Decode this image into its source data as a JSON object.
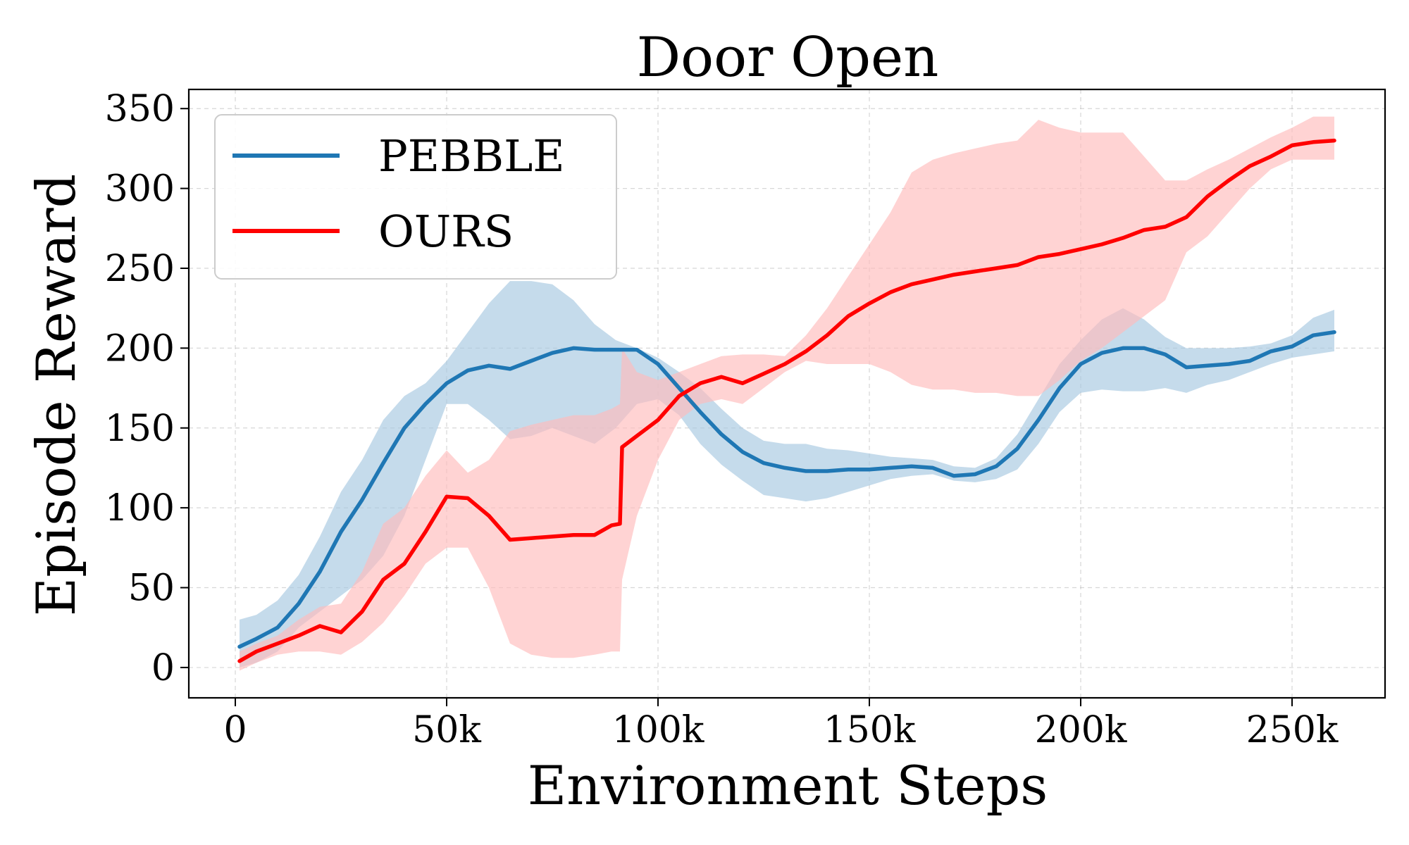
{
  "chart_data": {
    "type": "line",
    "title": "Door Open",
    "xlabel": "Environment Steps",
    "ylabel": "Episode Reward",
    "xlim": [
      -11000,
      272000
    ],
    "ylim": [
      -19,
      362
    ],
    "xticks": [
      0,
      50000,
      100000,
      150000,
      200000,
      250000
    ],
    "xtick_labels": [
      "0",
      "50k",
      "100k",
      "150k",
      "200k",
      "250k"
    ],
    "yticks": [
      0,
      50,
      100,
      150,
      200,
      250,
      300,
      350
    ],
    "ytick_labels": [
      "0",
      "50",
      "100",
      "150",
      "200",
      "250",
      "300",
      "350"
    ],
    "grid": true,
    "legend_position": "top-left",
    "series": [
      {
        "name": "PEBBLE",
        "color": "#1f77b4",
        "band_color": "#a6c8e0",
        "x": [
          1000,
          5000,
          10000,
          15000,
          20000,
          25000,
          30000,
          35000,
          40000,
          45000,
          50000,
          55000,
          60000,
          65000,
          70000,
          75000,
          80000,
          85000,
          90000,
          95000,
          100000,
          105000,
          110000,
          115000,
          120000,
          125000,
          130000,
          135000,
          140000,
          145000,
          150000,
          155000,
          160000,
          165000,
          170000,
          175000,
          180000,
          185000,
          190000,
          195000,
          200000,
          205000,
          210000,
          215000,
          220000,
          225000,
          230000,
          235000,
          240000,
          245000,
          250000,
          255000,
          260000
        ],
        "y": [
          13,
          18,
          25,
          40,
          60,
          85,
          105,
          128,
          150,
          165,
          178,
          186,
          189,
          187,
          192,
          197,
          200,
          199,
          199,
          199,
          190,
          175,
          160,
          146,
          135,
          128,
          125,
          123,
          123,
          124,
          124,
          125,
          126,
          125,
          120,
          121,
          126,
          137,
          155,
          175,
          190,
          197,
          200,
          200,
          196,
          188,
          189,
          190,
          192,
          198,
          201,
          208,
          210
        ],
        "lower": [
          0,
          3,
          10,
          25,
          35,
          45,
          55,
          70,
          95,
          130,
          165,
          165,
          155,
          143,
          145,
          150,
          145,
          140,
          150,
          165,
          168,
          158,
          140,
          127,
          117,
          108,
          106,
          104,
          106,
          110,
          114,
          118,
          120,
          121,
          117,
          116,
          118,
          124,
          140,
          160,
          172,
          174,
          173,
          173,
          175,
          172,
          177,
          180,
          185,
          190,
          194,
          196,
          198
        ],
        "upper": [
          30,
          33,
          42,
          58,
          82,
          110,
          130,
          155,
          170,
          178,
          192,
          210,
          228,
          242,
          242,
          240,
          230,
          215,
          205,
          200,
          194,
          185,
          175,
          162,
          150,
          142,
          140,
          140,
          137,
          136,
          134,
          132,
          131,
          130,
          126,
          125,
          131,
          146,
          168,
          190,
          205,
          218,
          225,
          218,
          207,
          200,
          200,
          200,
          201,
          203,
          208,
          219,
          224
        ]
      },
      {
        "name": "OURS",
        "color": "#ff0000",
        "band_color": "#ffbbbb",
        "x": [
          1000,
          5000,
          10000,
          15000,
          20000,
          25000,
          30000,
          35000,
          40000,
          45000,
          50000,
          55000,
          60000,
          65000,
          70000,
          75000,
          80000,
          85000,
          89000,
          91000,
          91500,
          95000,
          100000,
          105000,
          110000,
          115000,
          120000,
          125000,
          130000,
          135000,
          140000,
          145000,
          150000,
          155000,
          160000,
          165000,
          170000,
          175000,
          180000,
          185000,
          190000,
          195000,
          200000,
          205000,
          210000,
          215000,
          220000,
          225000,
          230000,
          235000,
          240000,
          245000,
          250000,
          255000,
          260000
        ],
        "y": [
          4,
          10,
          15,
          20,
          26,
          22,
          35,
          55,
          65,
          85,
          107,
          106,
          95,
          80,
          81,
          82,
          83,
          83,
          89,
          90,
          138,
          145,
          155,
          170,
          178,
          182,
          178,
          184,
          190,
          198,
          208,
          220,
          228,
          235,
          240,
          243,
          246,
          248,
          250,
          252,
          257,
          259,
          262,
          265,
          269,
          274,
          276,
          282,
          295,
          305,
          314,
          320,
          327,
          329,
          330
        ],
        "lower": [
          -2,
          3,
          8,
          10,
          10,
          8,
          16,
          28,
          45,
          65,
          75,
          75,
          50,
          15,
          8,
          6,
          6,
          8,
          10,
          10,
          55,
          95,
          130,
          155,
          165,
          168,
          165,
          175,
          185,
          192,
          190,
          190,
          190,
          185,
          177,
          174,
          174,
          172,
          172,
          170,
          170,
          180,
          192,
          200,
          210,
          220,
          230,
          260,
          270,
          285,
          300,
          312,
          318,
          318,
          318
        ],
        "upper": [
          10,
          15,
          20,
          30,
          38,
          40,
          60,
          90,
          100,
          120,
          136,
          122,
          130,
          148,
          152,
          155,
          158,
          158,
          162,
          165,
          200,
          185,
          180,
          185,
          190,
          195,
          196,
          196,
          195,
          208,
          225,
          245,
          265,
          285,
          310,
          318,
          322,
          325,
          328,
          330,
          343,
          338,
          335,
          335,
          335,
          320,
          305,
          305,
          312,
          318,
          325,
          332,
          338,
          345,
          345
        ]
      }
    ]
  }
}
